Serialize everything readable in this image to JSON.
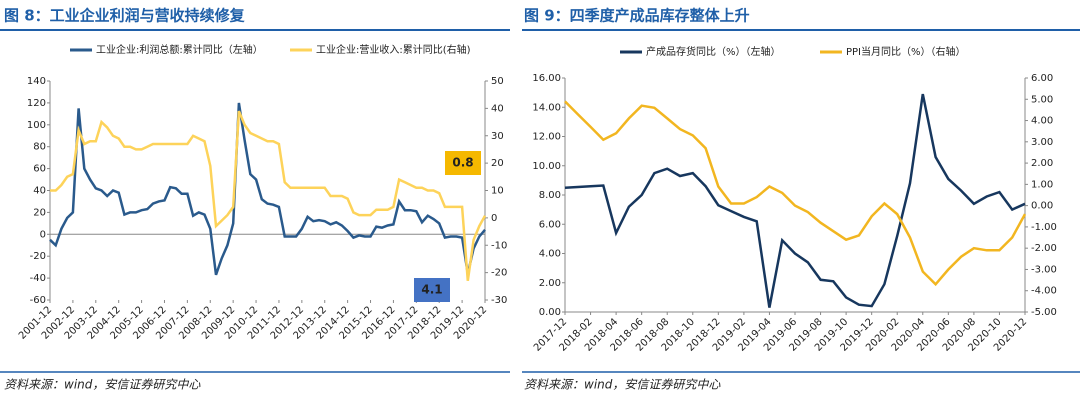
{
  "chart_data": [
    {
      "type": "line",
      "title": "图 8：工业企业利润与营收持续修复",
      "source": "资料来源：wind，安信证券研究中心",
      "categories": [
        "2001-12",
        null,
        null,
        null,
        "2002-12",
        null,
        null,
        null,
        "2003-12",
        null,
        null,
        null,
        "2004-12",
        null,
        null,
        null,
        "2005-12",
        null,
        null,
        null,
        "2006-12",
        null,
        null,
        null,
        "2007-12",
        null,
        null,
        null,
        "2008-12",
        null,
        null,
        null,
        "2009-12",
        null,
        null,
        null,
        "2010-12",
        null,
        null,
        null,
        "2011-12",
        null,
        null,
        null,
        "2012-12",
        null,
        null,
        null,
        "2013-12",
        null,
        null,
        null,
        "2014-12",
        null,
        null,
        null,
        "2015-12",
        null,
        null,
        null,
        "2016-12",
        null,
        null,
        null,
        "2017-12",
        null,
        null,
        null,
        "2018-12",
        null,
        null,
        null,
        "2019-12",
        null,
        null,
        null,
        "2020-12"
      ],
      "series": [
        {
          "name": "工业企业:利润总额:累计同比（左轴）",
          "color": "#2a5a8c",
          "values": [
            -5,
            -10,
            5,
            15,
            20,
            115,
            60,
            50,
            42,
            40,
            35,
            40,
            38,
            18,
            20,
            20,
            22,
            23,
            28,
            30,
            31,
            43,
            42,
            37,
            37,
            17,
            20,
            18,
            5,
            -37,
            -22,
            -10,
            10,
            120,
            86,
            55,
            50,
            32,
            28,
            27,
            25,
            -2,
            -2,
            -2,
            5,
            16,
            12,
            13,
            12,
            9,
            11,
            8,
            3,
            -3,
            -1,
            -2,
            -2,
            7,
            6,
            8,
            9,
            30,
            22,
            22,
            21,
            11,
            17,
            14,
            10,
            -3,
            -2,
            -2,
            -3,
            -36,
            -13,
            -2,
            4.1
          ]
        },
        {
          "name": "工业企业:营业收入:累计同比(右轴)",
          "color": "#fdd35a",
          "axis": "y2",
          "values": [
            10,
            10,
            12,
            15,
            16,
            32,
            27,
            28,
            28,
            35,
            33,
            30,
            29,
            26,
            26,
            25,
            25,
            26,
            27,
            27,
            27,
            27,
            27,
            27,
            27,
            30,
            29,
            28,
            19,
            -3,
            -1,
            1,
            4,
            39,
            34,
            31,
            30,
            29,
            28,
            28,
            27,
            13,
            11,
            11,
            11,
            11,
            11,
            11,
            11,
            8,
            8,
            8,
            7,
            2,
            1,
            1,
            1,
            3,
            3,
            3,
            4,
            14,
            13,
            12,
            11,
            11,
            10,
            10,
            9,
            4,
            4,
            4,
            4,
            -23,
            -8,
            -3,
            0.8
          ]
        }
      ],
      "ylim": [
        -60,
        140
      ],
      "yticks": [
        -60,
        -40,
        -20,
        0,
        20,
        40,
        60,
        80,
        100,
        120,
        140
      ],
      "y2lim": [
        -30,
        50
      ],
      "y2ticks": [
        -30,
        -20,
        -10,
        0,
        10,
        20,
        30,
        40,
        50
      ],
      "annotations": [
        {
          "text": "0.8",
          "color": "#f5b800"
        },
        {
          "text": "4.1",
          "color": "#4472c4"
        }
      ]
    },
    {
      "type": "line",
      "title": "图 9：四季度产成品库存整体上升",
      "source": "资料来源：wind，安信证券研究中心",
      "categories": [
        "2017-12",
        null,
        "2018-02",
        null,
        "2018-04",
        null,
        "2018-06",
        null,
        "2018-08",
        null,
        "2018-10",
        null,
        "2018-12",
        null,
        "2019-02",
        null,
        "2019-04",
        null,
        "2019-06",
        null,
        "2019-08",
        null,
        "2019-10",
        null,
        "2019-12",
        null,
        "2020-02",
        null,
        "2020-04",
        null,
        "2020-06",
        null,
        "2020-08",
        null,
        "2020-10",
        null,
        "2020-12"
      ],
      "series": [
        {
          "name": "产成品存货同比（%）（左轴）",
          "color": "#17375e",
          "values": [
            8.5,
            8.55,
            8.6,
            8.65,
            5.4,
            7.2,
            8.0,
            9.5,
            9.8,
            9.3,
            9.5,
            8.6,
            7.3,
            6.9,
            6.5,
            6.2,
            0.3,
            4.9,
            4.0,
            3.4,
            2.2,
            2.1,
            1.0,
            0.5,
            0.4,
            1.9,
            5.2,
            8.8,
            14.9,
            10.6,
            9.1,
            8.3,
            7.4,
            7.9,
            8.2,
            7.0,
            7.4
          ]
        },
        {
          "name": "PPI当月同比（%）（右轴）",
          "color": "#f2b620",
          "axis": "y2",
          "values": [
            4.9,
            4.3,
            3.7,
            3.1,
            3.4,
            4.1,
            4.7,
            4.6,
            4.1,
            3.6,
            3.3,
            2.7,
            0.9,
            0.1,
            0.1,
            0.4,
            0.9,
            0.6,
            0.0,
            -0.3,
            -0.8,
            -1.2,
            -1.6,
            -1.4,
            -0.5,
            0.1,
            -0.4,
            -1.5,
            -3.1,
            -3.7,
            -3.0,
            -2.4,
            -2.0,
            -2.1,
            -2.1,
            -1.5,
            -0.4
          ]
        }
      ],
      "ylim": [
        0,
        16
      ],
      "yticks": [
        {
          "value": 0,
          "label": "0.00"
        },
        {
          "value": 2,
          "label": "2.00"
        },
        {
          "value": 4,
          "label": "4.00"
        },
        {
          "value": 6,
          "label": "6.00"
        },
        {
          "value": 8,
          "label": "8.00"
        },
        {
          "value": 10,
          "label": "10.00"
        },
        {
          "value": 12,
          "label": "12.00"
        },
        {
          "value": 14,
          "label": "14.00"
        },
        {
          "value": 16,
          "label": "16.00"
        }
      ],
      "y2lim": [
        -5,
        6
      ],
      "y2ticks": [
        {
          "value": -5,
          "label": "-5.00"
        },
        {
          "value": -4,
          "label": "-4.00"
        },
        {
          "value": -3,
          "label": "-3.00"
        },
        {
          "value": -2,
          "label": "-2.00"
        },
        {
          "value": -1,
          "label": "-1.00"
        },
        {
          "value": 0,
          "label": "0.00"
        },
        {
          "value": 1,
          "label": "1.00"
        },
        {
          "value": 2,
          "label": "2.00"
        },
        {
          "value": 3,
          "label": "3.00"
        },
        {
          "value": 4,
          "label": "4.00"
        },
        {
          "value": 5,
          "label": "5.00"
        },
        {
          "value": 6,
          "label": "6.00"
        }
      ]
    }
  ]
}
